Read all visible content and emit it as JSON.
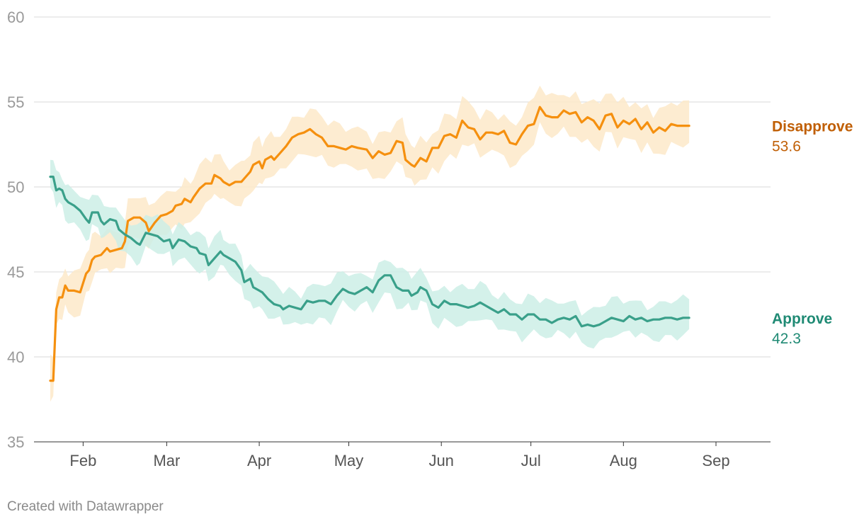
{
  "chart_data": {
    "type": "line",
    "title": "",
    "xlabel": "",
    "ylabel": "",
    "ylim": [
      35,
      60
    ],
    "y_ticks": [
      35,
      40,
      45,
      50,
      55,
      60
    ],
    "x_tick_labels": [
      "Feb",
      "Mar",
      "Apr",
      "May",
      "Jun",
      "Jul",
      "Aug",
      "Sep"
    ],
    "x_tick_days": [
      33,
      61,
      92,
      122,
      153,
      183,
      214,
      245
    ],
    "x_range_days": [
      22,
      259
    ],
    "grid": true,
    "legend": "end-of-line labels",
    "series": [
      {
        "name": "Disapprove",
        "label": "Disapprove",
        "end_value": "53.6",
        "color": "#f5900f",
        "band_color": "#fde9c9",
        "label_color": "#c05f05",
        "band_width": 1.2,
        "points": [
          [
            22,
            38.6
          ],
          [
            23,
            38.6
          ],
          [
            24,
            42.8
          ],
          [
            25,
            43.5
          ],
          [
            26,
            43.5
          ],
          [
            27,
            44.2
          ],
          [
            28,
            43.9
          ],
          [
            30,
            43.9
          ],
          [
            32,
            43.8
          ],
          [
            34,
            44.9
          ],
          [
            35,
            45.1
          ],
          [
            36,
            45.7
          ],
          [
            37,
            45.9
          ],
          [
            39,
            46.0
          ],
          [
            41,
            46.4
          ],
          [
            42,
            46.2
          ],
          [
            44,
            46.3
          ],
          [
            46,
            46.4
          ],
          [
            47,
            46.8
          ],
          [
            48,
            48.0
          ],
          [
            50,
            48.2
          ],
          [
            52,
            48.2
          ],
          [
            54,
            47.9
          ],
          [
            55,
            47.4
          ],
          [
            57,
            47.9
          ],
          [
            59,
            48.3
          ],
          [
            61,
            48.4
          ],
          [
            63,
            48.6
          ],
          [
            64,
            48.9
          ],
          [
            66,
            49.0
          ],
          [
            67,
            49.3
          ],
          [
            69,
            49.1
          ],
          [
            70,
            49.4
          ],
          [
            72,
            49.9
          ],
          [
            74,
            50.2
          ],
          [
            76,
            50.2
          ],
          [
            77,
            50.7
          ],
          [
            79,
            50.5
          ],
          [
            80,
            50.3
          ],
          [
            82,
            50.1
          ],
          [
            84,
            50.3
          ],
          [
            86,
            50.3
          ],
          [
            87,
            50.5
          ],
          [
            89,
            50.9
          ],
          [
            90,
            51.3
          ],
          [
            92,
            51.5
          ],
          [
            93,
            51.1
          ],
          [
            94,
            51.6
          ],
          [
            96,
            51.8
          ],
          [
            97,
            51.6
          ],
          [
            99,
            52.0
          ],
          [
            101,
            52.4
          ],
          [
            103,
            52.9
          ],
          [
            105,
            53.1
          ],
          [
            107,
            53.2
          ],
          [
            109,
            53.4
          ],
          [
            111,
            53.1
          ],
          [
            113,
            52.9
          ],
          [
            115,
            52.4
          ],
          [
            117,
            52.4
          ],
          [
            119,
            52.3
          ],
          [
            121,
            52.2
          ],
          [
            123,
            52.4
          ],
          [
            125,
            52.3
          ],
          [
            128,
            52.2
          ],
          [
            130,
            51.7
          ],
          [
            132,
            52.1
          ],
          [
            134,
            51.9
          ],
          [
            136,
            52.0
          ],
          [
            138,
            52.7
          ],
          [
            140,
            52.6
          ],
          [
            141,
            51.6
          ],
          [
            143,
            51.3
          ],
          [
            144,
            51.2
          ],
          [
            146,
            51.7
          ],
          [
            148,
            51.5
          ],
          [
            150,
            52.3
          ],
          [
            152,
            52.3
          ],
          [
            154,
            53.0
          ],
          [
            156,
            53.1
          ],
          [
            158,
            52.9
          ],
          [
            160,
            53.9
          ],
          [
            162,
            53.5
          ],
          [
            164,
            53.4
          ],
          [
            166,
            52.8
          ],
          [
            168,
            53.2
          ],
          [
            170,
            53.2
          ],
          [
            172,
            53.1
          ],
          [
            174,
            53.3
          ],
          [
            176,
            52.6
          ],
          [
            178,
            52.5
          ],
          [
            180,
            53.1
          ],
          [
            182,
            53.6
          ],
          [
            184,
            53.7
          ],
          [
            186,
            54.7
          ],
          [
            188,
            54.2
          ],
          [
            190,
            54.1
          ],
          [
            192,
            54.1
          ],
          [
            194,
            54.5
          ],
          [
            196,
            54.3
          ],
          [
            198,
            54.4
          ],
          [
            200,
            53.8
          ],
          [
            202,
            54.1
          ],
          [
            204,
            53.9
          ],
          [
            206,
            53.4
          ],
          [
            208,
            54.2
          ],
          [
            210,
            54.3
          ],
          [
            212,
            53.5
          ],
          [
            214,
            53.9
          ],
          [
            216,
            53.7
          ],
          [
            218,
            54.0
          ],
          [
            220,
            53.4
          ],
          [
            222,
            53.8
          ],
          [
            224,
            53.2
          ],
          [
            226,
            53.5
          ],
          [
            228,
            53.3
          ],
          [
            230,
            53.7
          ],
          [
            232,
            53.6
          ],
          [
            234,
            53.6
          ],
          [
            236,
            53.6
          ]
        ]
      },
      {
        "name": "Approve",
        "label": "Approve",
        "end_value": "42.3",
        "color": "#3aa08a",
        "band_color": "#cdeee6",
        "label_color": "#1f8a74",
        "band_width": 1.0,
        "points": [
          [
            22,
            50.6
          ],
          [
            23,
            50.6
          ],
          [
            24,
            49.8
          ],
          [
            25,
            49.9
          ],
          [
            26,
            49.8
          ],
          [
            27,
            49.3
          ],
          [
            28,
            49.1
          ],
          [
            30,
            48.9
          ],
          [
            32,
            48.6
          ],
          [
            34,
            48.1
          ],
          [
            35,
            47.9
          ],
          [
            36,
            48.5
          ],
          [
            38,
            48.5
          ],
          [
            39,
            48.0
          ],
          [
            40,
            47.8
          ],
          [
            42,
            48.1
          ],
          [
            44,
            48.0
          ],
          [
            45,
            47.5
          ],
          [
            47,
            47.2
          ],
          [
            49,
            47.0
          ],
          [
            51,
            46.7
          ],
          [
            52,
            46.6
          ],
          [
            54,
            47.3
          ],
          [
            56,
            47.2
          ],
          [
            58,
            47.1
          ],
          [
            60,
            46.8
          ],
          [
            62,
            46.9
          ],
          [
            63,
            46.4
          ],
          [
            65,
            46.9
          ],
          [
            67,
            46.8
          ],
          [
            69,
            46.5
          ],
          [
            71,
            46.4
          ],
          [
            72,
            46.1
          ],
          [
            74,
            46.0
          ],
          [
            75,
            45.4
          ],
          [
            77,
            45.8
          ],
          [
            79,
            46.2
          ],
          [
            80,
            46.0
          ],
          [
            82,
            45.8
          ],
          [
            84,
            45.6
          ],
          [
            86,
            45.1
          ],
          [
            87,
            44.4
          ],
          [
            89,
            44.6
          ],
          [
            90,
            44.1
          ],
          [
            92,
            43.9
          ],
          [
            93,
            43.8
          ],
          [
            95,
            43.4
          ],
          [
            97,
            43.1
          ],
          [
            99,
            43.0
          ],
          [
            100,
            42.8
          ],
          [
            102,
            43.0
          ],
          [
            104,
            42.9
          ],
          [
            106,
            42.8
          ],
          [
            108,
            43.3
          ],
          [
            110,
            43.2
          ],
          [
            112,
            43.3
          ],
          [
            114,
            43.3
          ],
          [
            116,
            43.1
          ],
          [
            118,
            43.6
          ],
          [
            120,
            44.0
          ],
          [
            122,
            43.8
          ],
          [
            124,
            43.7
          ],
          [
            126,
            43.9
          ],
          [
            128,
            44.1
          ],
          [
            130,
            43.8
          ],
          [
            132,
            44.5
          ],
          [
            134,
            44.8
          ],
          [
            136,
            44.8
          ],
          [
            138,
            44.1
          ],
          [
            140,
            43.9
          ],
          [
            142,
            43.9
          ],
          [
            143,
            43.6
          ],
          [
            145,
            43.8
          ],
          [
            146,
            44.1
          ],
          [
            148,
            43.9
          ],
          [
            150,
            43.1
          ],
          [
            152,
            42.9
          ],
          [
            154,
            43.3
          ],
          [
            156,
            43.1
          ],
          [
            158,
            43.1
          ],
          [
            160,
            43.0
          ],
          [
            162,
            42.9
          ],
          [
            164,
            43.0
          ],
          [
            166,
            43.2
          ],
          [
            168,
            43.0
          ],
          [
            170,
            42.8
          ],
          [
            172,
            42.6
          ],
          [
            174,
            42.8
          ],
          [
            176,
            42.5
          ],
          [
            178,
            42.5
          ],
          [
            180,
            42.2
          ],
          [
            182,
            42.5
          ],
          [
            184,
            42.5
          ],
          [
            186,
            42.2
          ],
          [
            188,
            42.2
          ],
          [
            190,
            42.0
          ],
          [
            192,
            42.2
          ],
          [
            194,
            42.3
          ],
          [
            196,
            42.2
          ],
          [
            198,
            42.4
          ],
          [
            200,
            41.8
          ],
          [
            202,
            41.9
          ],
          [
            204,
            41.8
          ],
          [
            206,
            41.9
          ],
          [
            208,
            42.1
          ],
          [
            210,
            42.3
          ],
          [
            212,
            42.2
          ],
          [
            214,
            42.1
          ],
          [
            216,
            42.4
          ],
          [
            218,
            42.2
          ],
          [
            220,
            42.3
          ],
          [
            222,
            42.1
          ],
          [
            224,
            42.2
          ],
          [
            226,
            42.2
          ],
          [
            228,
            42.3
          ],
          [
            230,
            42.3
          ],
          [
            232,
            42.2
          ],
          [
            234,
            42.3
          ],
          [
            236,
            42.3
          ]
        ]
      }
    ]
  },
  "footer": {
    "credit": "Created with Datawrapper"
  }
}
